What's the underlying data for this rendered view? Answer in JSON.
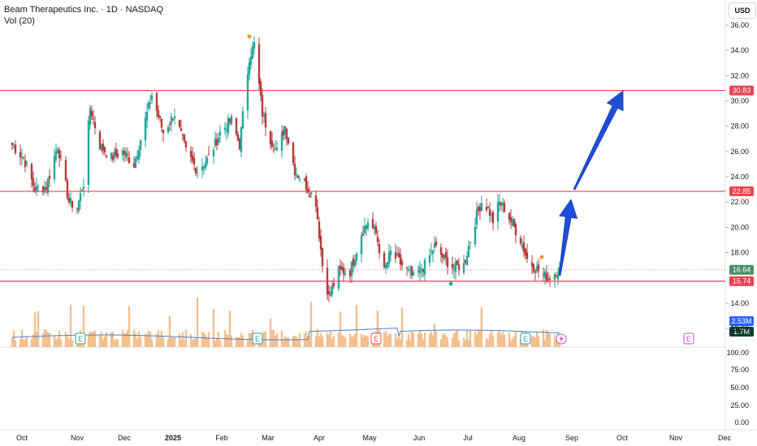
{
  "header": {
    "symbol_line": "Beam Therapeutics Inc. · 1D · NASDAQ",
    "indicator_line": "Vol (20)"
  },
  "currency": "USD",
  "colors": {
    "up": "#26a69a",
    "down": "#b83b3b",
    "resistance": "#e8434f",
    "arrow": "#1f4fd8",
    "volume": "#f3c08f",
    "volume_ma": "#4a7fd1",
    "last_price_tag": "#4c8f66",
    "volume_tag": "#2962ff",
    "volume_last_tag": "#0c3e2e",
    "earnings": "#26a69a",
    "earnings_future": "#c652c6"
  },
  "chart_data": {
    "type": "candlestick",
    "price_axis": {
      "ticks": [
        "36.00",
        "34.00",
        "32.00",
        "30.00",
        "28.00",
        "26.00",
        "24.00",
        "22.00",
        "20.00",
        "18.00",
        "14.00",
        "12.00"
      ],
      "ylim": [
        11.8,
        36.5
      ]
    },
    "volume_axis": {
      "ticks": [
        "100.00",
        "75.00",
        "50.00",
        "25.00",
        "0.00"
      ]
    },
    "x_axis": {
      "ticks": [
        "Oct",
        "Nov",
        "Dec",
        "2025",
        "Feb",
        "Mar",
        "Apr",
        "May",
        "Jun",
        "Jul",
        "Aug",
        "Sep",
        "Oct",
        "Nov",
        "Dec"
      ],
      "bold": [
        "2025"
      ]
    },
    "levels": [
      {
        "label": "30.83",
        "value": 30.83
      },
      {
        "label": "22.85",
        "value": 22.85
      },
      {
        "label": "15.74",
        "value": 15.74
      }
    ],
    "last_price": {
      "label": "16.64",
      "value": 16.64
    },
    "volume_labels": {
      "ma": "2.53M",
      "last": "1.7M"
    },
    "earnings_markers": [
      {
        "label": "E",
        "type": "past",
        "date": "Nov"
      },
      {
        "label": "E",
        "type": "past",
        "date": "Feb"
      },
      {
        "label": "E",
        "type": "past-red",
        "date": "May"
      },
      {
        "label": "E",
        "type": "past",
        "date": "Aug"
      },
      {
        "label": "E",
        "type": "future",
        "date": "Nov"
      }
    ],
    "price_path": [
      [
        "2024-09-25",
        26.5
      ],
      [
        "2024-10-02",
        25.5
      ],
      [
        "2024-10-09",
        23.0
      ],
      [
        "2024-10-16",
        23.2
      ],
      [
        "2024-10-23",
        26.5
      ],
      [
        "2024-10-30",
        22.0
      ],
      [
        "2024-11-04",
        21.6
      ],
      [
        "2024-11-08",
        23.5
      ],
      [
        "2024-11-12",
        29.5
      ],
      [
        "2024-11-18",
        26.5
      ],
      [
        "2024-11-25",
        25.5
      ],
      [
        "2024-12-02",
        26.0
      ],
      [
        "2024-12-09",
        25.0
      ],
      [
        "2024-12-16",
        28.5
      ],
      [
        "2024-12-20",
        30.5
      ],
      [
        "2024-12-27",
        27.5
      ],
      [
        "2025-01-03",
        29.0
      ],
      [
        "2025-01-10",
        26.0
      ],
      [
        "2025-01-17",
        24.5
      ],
      [
        "2025-01-24",
        25.5
      ],
      [
        "2025-01-31",
        27.5
      ],
      [
        "2025-02-07",
        28.5
      ],
      [
        "2025-02-12",
        26.5
      ],
      [
        "2025-02-18",
        33.5
      ],
      [
        "2025-02-21",
        34.5
      ],
      [
        "2025-02-26",
        29.0
      ],
      [
        "2025-03-03",
        27.0
      ],
      [
        "2025-03-07",
        26.0
      ],
      [
        "2025-03-12",
        28.0
      ],
      [
        "2025-03-18",
        24.5
      ],
      [
        "2025-03-24",
        23.5
      ],
      [
        "2025-03-31",
        22.0
      ],
      [
        "2025-04-04",
        17.0
      ],
      [
        "2025-04-08",
        14.5
      ],
      [
        "2025-04-14",
        16.5
      ],
      [
        "2025-04-21",
        16.5
      ],
      [
        "2025-04-28",
        19.5
      ],
      [
        "2025-05-02",
        20.5
      ],
      [
        "2025-05-07",
        19.5
      ],
      [
        "2025-05-12",
        16.5
      ],
      [
        "2025-05-16",
        18.0
      ],
      [
        "2025-05-23",
        17.0
      ],
      [
        "2025-05-30",
        16.0
      ],
      [
        "2025-06-06",
        17.0
      ],
      [
        "2025-06-12",
        18.5
      ],
      [
        "2025-06-18",
        17.5
      ],
      [
        "2025-06-24",
        16.8
      ],
      [
        "2025-06-30",
        17.0
      ],
      [
        "2025-07-03",
        18.5
      ],
      [
        "2025-07-08",
        21.0
      ],
      [
        "2025-07-11",
        22.0
      ],
      [
        "2025-07-15",
        21.5
      ],
      [
        "2025-07-18",
        20.5
      ],
      [
        "2025-07-22",
        22.0
      ],
      [
        "2025-07-25",
        21.5
      ],
      [
        "2025-07-29",
        20.5
      ],
      [
        "2025-08-04",
        19.0
      ],
      [
        "2025-08-08",
        17.5
      ],
      [
        "2025-08-13",
        16.8
      ],
      [
        "2025-08-18",
        16.2
      ],
      [
        "2025-08-21",
        16.0
      ],
      [
        "2025-08-25",
        16.4
      ],
      [
        "2025-08-28",
        16.64
      ]
    ],
    "projection_arrows": [
      {
        "from": [
          "2025-08-28",
          16.2
        ],
        "to": [
          "2025-09-04",
          22.2
        ]
      },
      {
        "from": [
          "2025-09-06",
          23.0
        ],
        "to": [
          "2025-10-06",
          30.8
        ]
      }
    ]
  }
}
